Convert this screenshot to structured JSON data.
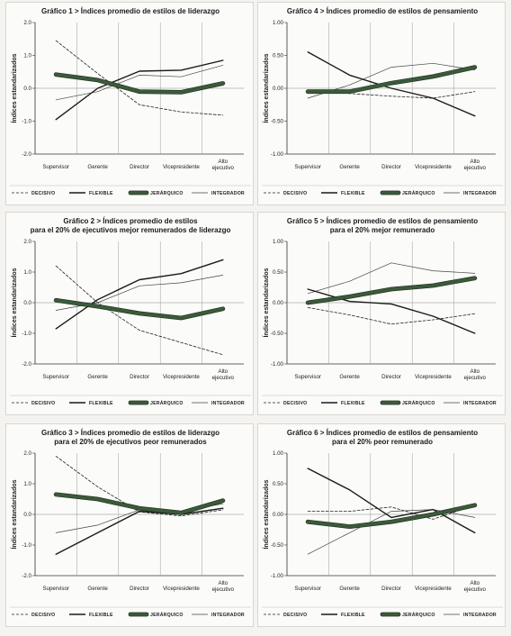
{
  "colors": {
    "decisivo": "#222222",
    "flexible": "#1a1a1a",
    "jerarquico": "#3c5a3a",
    "jerarquico_edge": "#1e2e1d",
    "integrador": "#444444"
  },
  "legend": {
    "decisivo": "DECISIVO",
    "flexible": "FLEXIBLE",
    "jerarquico": "JERÁRQUICO",
    "integrador": "INTEGRADOR"
  },
  "chart_data": [
    {
      "type": "line",
      "title_lines": [
        "Gráfico 1 > Índices promedio de estilos de liderazgo"
      ],
      "ylabel": "Índices estandarizados",
      "ylim": [
        -2.0,
        2.0
      ],
      "yticks": [
        "2.0",
        "1.0",
        "0.0",
        "-1.0",
        "-2.0"
      ],
      "yticks_values": [
        2,
        1,
        0,
        -1,
        -2
      ],
      "categories": [
        "Supervisor",
        "Gerente",
        "Director",
        "Vicepresidente",
        "Alto ejecutivo"
      ],
      "series": [
        {
          "name": "DECISIVO",
          "values": [
            1.45,
            0.45,
            -0.5,
            -0.72,
            -0.82
          ]
        },
        {
          "name": "FLEXIBLE",
          "values": [
            -0.95,
            0.0,
            0.52,
            0.55,
            0.85
          ]
        },
        {
          "name": "JERÁRQUICO",
          "values": [
            0.42,
            0.25,
            -0.1,
            -0.12,
            0.15
          ]
        },
        {
          "name": "INTEGRADOR",
          "values": [
            -0.35,
            -0.1,
            0.4,
            0.35,
            0.7
          ]
        }
      ]
    },
    {
      "type": "line",
      "title_lines": [
        "Gráfico 4 > Índices promedio de estilos de pensamiento"
      ],
      "ylabel": "Índices estandarizados",
      "ylim": [
        -1.0,
        1.0
      ],
      "yticks": [
        "1.00",
        "0.50",
        "0.00",
        "-0.50",
        "-1.00"
      ],
      "yticks_values": [
        1,
        0.5,
        0,
        -0.5,
        -1
      ],
      "categories": [
        "Supervisor",
        "Gerente",
        "Director",
        "Vicepresidente",
        "Alto ejecutivo"
      ],
      "series": [
        {
          "name": "DECISIVO",
          "values": [
            -0.05,
            -0.08,
            -0.12,
            -0.15,
            -0.05
          ]
        },
        {
          "name": "FLEXIBLE",
          "values": [
            0.55,
            0.2,
            0.0,
            -0.15,
            -0.42
          ]
        },
        {
          "name": "JERÁRQUICO",
          "values": [
            -0.05,
            -0.05,
            0.08,
            0.18,
            0.32
          ]
        },
        {
          "name": "INTEGRADOR",
          "values": [
            -0.15,
            0.05,
            0.32,
            0.38,
            0.28
          ]
        }
      ]
    },
    {
      "type": "line",
      "title_lines": [
        "Gráfico 2 > Índices promedio de estilos",
        "para el 20% de ejecutivos mejor remunerados de liderazgo"
      ],
      "ylabel": "Índices estandarizados",
      "ylim": [
        -2.0,
        2.0
      ],
      "yticks": [
        "2.0",
        "1.0",
        "0.0",
        "-1.0",
        "-2.0"
      ],
      "yticks_values": [
        2,
        1,
        0,
        -1,
        -2
      ],
      "categories": [
        "Supervisor",
        "Gerente",
        "Director",
        "Vicepresidente",
        "Alto ejecutivo"
      ],
      "series": [
        {
          "name": "DECISIVO",
          "values": [
            1.2,
            0.0,
            -0.9,
            -1.3,
            -1.7
          ]
        },
        {
          "name": "FLEXIBLE",
          "values": [
            -0.85,
            0.1,
            0.75,
            0.95,
            1.4
          ]
        },
        {
          "name": "JERÁRQUICO",
          "values": [
            0.08,
            -0.12,
            -0.35,
            -0.5,
            -0.2
          ]
        },
        {
          "name": "INTEGRADOR",
          "values": [
            -0.25,
            0.0,
            0.55,
            0.65,
            0.9
          ]
        }
      ]
    },
    {
      "type": "line",
      "title_lines": [
        "Gráfico 5 > Índices promedio de estilos de pensamiento",
        "para el 20% mejor remunerado"
      ],
      "ylabel": "Índices estandarizados",
      "ylim": [
        -1.0,
        1.0
      ],
      "yticks": [
        "1.00",
        "0.50",
        "0.00",
        "-0.50",
        "-1.00"
      ],
      "yticks_values": [
        1,
        0.5,
        0,
        -0.5,
        -1
      ],
      "categories": [
        "Supervisor",
        "Gerente",
        "Director",
        "Vicepresidente",
        "Alto ejecutivo"
      ],
      "series": [
        {
          "name": "DECISIVO",
          "values": [
            -0.08,
            -0.2,
            -0.35,
            -0.28,
            -0.18
          ]
        },
        {
          "name": "FLEXIBLE",
          "values": [
            0.22,
            0.02,
            -0.02,
            -0.22,
            -0.5
          ]
        },
        {
          "name": "JERÁRQUICO",
          "values": [
            0.0,
            0.1,
            0.22,
            0.28,
            0.4
          ]
        },
        {
          "name": "INTEGRADOR",
          "values": [
            0.15,
            0.35,
            0.65,
            0.52,
            0.48
          ]
        }
      ]
    },
    {
      "type": "line",
      "title_lines": [
        "Gráfico 3 > Índices promedio de estilos de liderazgo",
        "para el 20% de ejecutivos peor remunerados"
      ],
      "ylabel": "Índices estandarizados",
      "ylim": [
        -2.0,
        2.0
      ],
      "yticks": [
        "2.0",
        "1.0",
        "0.0",
        "-1.0",
        "-2.0"
      ],
      "yticks_values": [
        2,
        1,
        0,
        -1,
        -2
      ],
      "categories": [
        "Supervisor",
        "Gerente",
        "Director",
        "Vicepresidente",
        "Alto ejecutivo"
      ],
      "series": [
        {
          "name": "DECISIVO",
          "values": [
            1.9,
            0.9,
            0.08,
            -0.05,
            0.15
          ]
        },
        {
          "name": "FLEXIBLE",
          "values": [
            -1.3,
            -0.6,
            0.1,
            0.0,
            0.2
          ]
        },
        {
          "name": "JERÁRQUICO",
          "values": [
            0.65,
            0.5,
            0.2,
            0.05,
            0.45
          ]
        },
        {
          "name": "INTEGRADOR",
          "values": [
            -0.6,
            -0.35,
            0.15,
            0.1,
            0.35
          ]
        }
      ]
    },
    {
      "type": "line",
      "title_lines": [
        "Gráfico 6 > Índices promedio de estilos de pensamiento",
        "para el 20% peor remunerado"
      ],
      "ylabel": "Índices estandarizados",
      "ylim": [
        -1.0,
        1.0
      ],
      "yticks": [
        "1.00",
        "0.50",
        "0.00",
        "-0.50",
        "-1.00"
      ],
      "yticks_values": [
        1,
        0.5,
        0,
        -0.5,
        -1
      ],
      "categories": [
        "Supervisor",
        "Gerente",
        "Director",
        "Vicepresidente",
        "Alto ejecutivo"
      ],
      "series": [
        {
          "name": "DECISIVO",
          "values": [
            0.05,
            0.05,
            0.12,
            -0.08,
            0.15
          ]
        },
        {
          "name": "FLEXIBLE",
          "values": [
            0.75,
            0.4,
            -0.05,
            0.08,
            -0.3
          ]
        },
        {
          "name": "JERÁRQUICO",
          "values": [
            -0.12,
            -0.2,
            -0.12,
            0.0,
            0.15
          ]
        },
        {
          "name": "INTEGRADOR",
          "values": [
            -0.65,
            -0.3,
            0.05,
            0.08,
            -0.05
          ]
        }
      ]
    }
  ]
}
